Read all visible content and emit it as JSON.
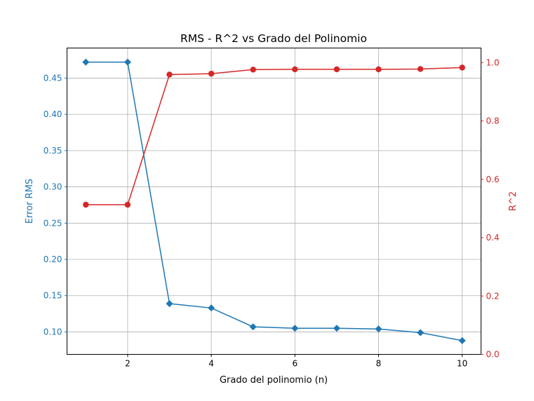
{
  "chart_data": {
    "type": "line",
    "title": "RMS - R^2 vs Grado del Polinomio",
    "xlabel": "Grado del polinomio (n)",
    "ylabel": "Error RMS",
    "y2label": "R^2",
    "x": [
      1,
      2,
      3,
      4,
      5,
      6,
      7,
      8,
      9,
      10
    ],
    "xlim": [
      0.55,
      10.45
    ],
    "ylim": [
      0.069,
      0.4915
    ],
    "y2lim": [
      0.0,
      1.05
    ],
    "xticks": [
      "2",
      "4",
      "6",
      "8",
      "10"
    ],
    "yticks": [
      "0.10",
      "0.15",
      "0.20",
      "0.25",
      "0.30",
      "0.35",
      "0.40",
      "0.45"
    ],
    "y2ticks": [
      "0.0",
      "0.2",
      "0.4",
      "0.6",
      "0.8",
      "1.0"
    ],
    "grid": true,
    "series": [
      {
        "axis": "left",
        "marker": "diamond",
        "color": "#1f77b4",
        "values": [
          0.472,
          0.472,
          0.139,
          0.133,
          0.107,
          0.105,
          0.105,
          0.104,
          0.099,
          0.088
        ]
      },
      {
        "axis": "right",
        "marker": "circle",
        "color": "#d62728",
        "values": [
          0.513,
          0.513,
          0.959,
          0.962,
          0.976,
          0.977,
          0.977,
          0.977,
          0.978,
          0.983
        ]
      }
    ]
  }
}
